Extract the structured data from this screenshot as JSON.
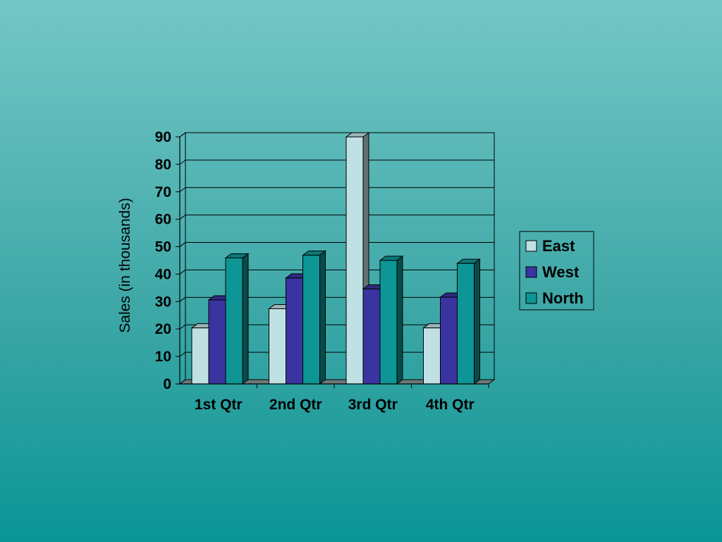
{
  "chart_data": {
    "type": "bar",
    "three_d": true,
    "title": "",
    "xlabel": "",
    "ylabel": "Sales (in thousands)",
    "categories": [
      "1st Qtr",
      "2nd Qtr",
      "3rd Qtr",
      "4th Qtr"
    ],
    "ylim": [
      0,
      90
    ],
    "yticks": [
      0,
      10,
      20,
      30,
      40,
      50,
      60,
      70,
      80,
      90
    ],
    "grid": true,
    "legend_position": "right",
    "series": [
      {
        "name": "East",
        "color": "#bfe1e3",
        "values": [
          20.4,
          27.4,
          90,
          20.4
        ]
      },
      {
        "name": "West",
        "color": "#3a34a0",
        "values": [
          30.6,
          38.6,
          34.6,
          31.6
        ]
      },
      {
        "name": "North",
        "color": "#0e9696",
        "values": [
          45.9,
          46.9,
          45,
          43.9
        ]
      }
    ]
  }
}
